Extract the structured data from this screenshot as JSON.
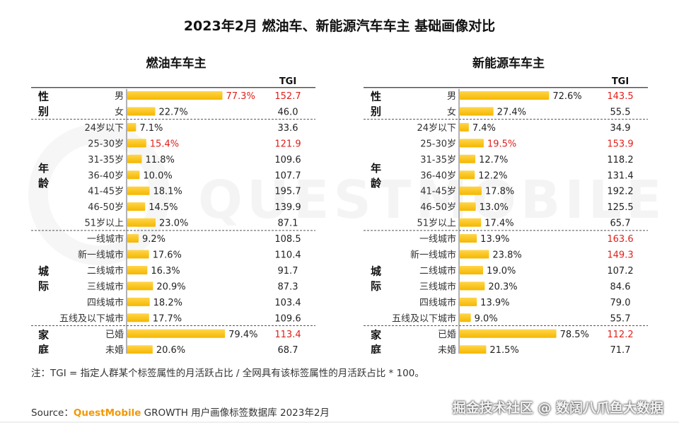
{
  "title": "2023年2月 燃油车、新能源汽车车主 基础画像对比",
  "colors": {
    "bar": "#f5b700",
    "bar_light": "#ffd54a",
    "highlight": "#e0201b",
    "text": "#333333"
  },
  "chart_data": [
    {
      "type": "bar",
      "title": "燃油车车主",
      "tgi_header": "TGI",
      "groups": [
        {
          "label": "性别",
          "categories": [
            "男",
            "女"
          ],
          "values": [
            77.3,
            22.7
          ],
          "value_labels": [
            "77.3%",
            "22.7%"
          ],
          "tgi": [
            "152.7",
            "46.0"
          ],
          "highlight": [
            0
          ],
          "tgi_highlight": [
            0
          ]
        },
        {
          "label": "年龄",
          "categories": [
            "24岁以下",
            "25-30岁",
            "31-35岁",
            "36-40岁",
            "41-45岁",
            "46-50岁",
            "51岁以上"
          ],
          "values": [
            7.1,
            15.4,
            11.8,
            10.0,
            18.1,
            14.5,
            23.0
          ],
          "value_labels": [
            "7.1%",
            "15.4%",
            "11.8%",
            "10.0%",
            "18.1%",
            "14.5%",
            "23.0%"
          ],
          "tgi": [
            "33.6",
            "121.9",
            "109.6",
            "107.7",
            "195.7",
            "139.9",
            "87.1"
          ],
          "highlight": [
            1
          ],
          "tgi_highlight": [
            1
          ]
        },
        {
          "label": "城际",
          "categories": [
            "一线城市",
            "新一线城市",
            "二线城市",
            "三线城市",
            "四线城市",
            "五线及以下城市"
          ],
          "values": [
            9.2,
            17.6,
            16.3,
            20.9,
            18.2,
            17.7
          ],
          "value_labels": [
            "9.2%",
            "17.6%",
            "16.3%",
            "20.9%",
            "18.2%",
            "17.7%"
          ],
          "tgi": [
            "108.5",
            "110.4",
            "91.7",
            "87.3",
            "103.4",
            "109.6"
          ],
          "highlight": [],
          "tgi_highlight": []
        },
        {
          "label": "家庭",
          "categories": [
            "已婚",
            "未婚"
          ],
          "values": [
            79.4,
            20.6
          ],
          "value_labels": [
            "79.4%",
            "20.6%"
          ],
          "tgi": [
            "113.4",
            "68.7"
          ],
          "highlight": [],
          "tgi_highlight": [
            0
          ]
        }
      ]
    },
    {
      "type": "bar",
      "title": "新能源车车主",
      "tgi_header": "TGI",
      "groups": [
        {
          "label": "性别",
          "categories": [
            "男",
            "女"
          ],
          "values": [
            72.6,
            27.4
          ],
          "value_labels": [
            "72.6%",
            "27.4%"
          ],
          "tgi": [
            "143.5",
            "55.5"
          ],
          "highlight": [],
          "tgi_highlight": [
            0
          ]
        },
        {
          "label": "年龄",
          "categories": [
            "24岁以下",
            "25-30岁",
            "31-35岁",
            "36-40岁",
            "41-45岁",
            "46-50岁",
            "51岁以上"
          ],
          "values": [
            7.4,
            19.5,
            12.7,
            12.2,
            17.8,
            13.0,
            17.4
          ],
          "value_labels": [
            "7.4%",
            "19.5%",
            "12.7%",
            "12.2%",
            "17.8%",
            "13.0%",
            "17.4%"
          ],
          "tgi": [
            "34.9",
            "153.9",
            "118.2",
            "131.4",
            "192.2",
            "125.5",
            "65.7"
          ],
          "highlight": [
            1
          ],
          "tgi_highlight": [
            1
          ]
        },
        {
          "label": "城际",
          "categories": [
            "一线城市",
            "新一线城市",
            "二线城市",
            "三线城市",
            "四线城市",
            "五线及以下城市"
          ],
          "values": [
            13.9,
            23.8,
            19.0,
            20.3,
            13.9,
            9.0
          ],
          "value_labels": [
            "13.9%",
            "23.8%",
            "19.0%",
            "20.3%",
            "13.9%",
            "9.0%"
          ],
          "tgi": [
            "163.6",
            "149.3",
            "107.2",
            "84.6",
            "79.0",
            "55.7"
          ],
          "highlight": [],
          "tgi_highlight": [
            0,
            1
          ]
        },
        {
          "label": "家庭",
          "categories": [
            "已婚",
            "未婚"
          ],
          "values": [
            78.5,
            21.5
          ],
          "value_labels": [
            "78.5%",
            "21.5%"
          ],
          "tgi": [
            "112.2",
            "71.7"
          ],
          "highlight": [],
          "tgi_highlight": [
            0
          ]
        }
      ]
    }
  ],
  "note": "注：TGI = 指定人群某个标签属性的月活跃占比 / 全网具有该标签属性的月活跃占比 * 100。",
  "source": {
    "prefix": "Source：",
    "brand": "QuestMobile",
    "rest": " GROWTH 用户画像标签数据库 2023年2月"
  },
  "credit": "掘金技术社区 @ 数阔八爪鱼大数据",
  "watermark": "QUESTMOBILE"
}
